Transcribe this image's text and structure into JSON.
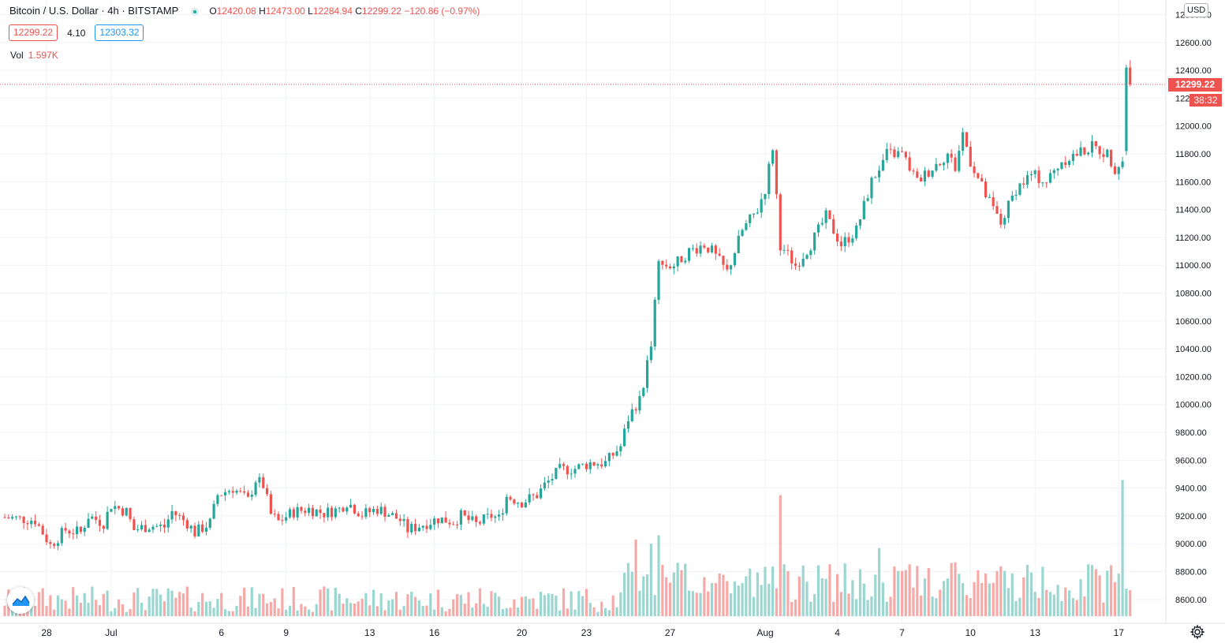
{
  "header": {
    "symbol_title": "Bitcoin / U.S. Dollar · 4h · BITSTAMP",
    "ohlc": {
      "o_key": "O",
      "o_val": "12420.08",
      "h_key": "H",
      "h_val": "12473.00",
      "l_key": "L",
      "l_val": "12284.94",
      "c_key": "C",
      "c_val": "12299.22",
      "change": "−120.86 (−0.97%)"
    },
    "bid": "12299.22",
    "spread": "4.10",
    "ask": "12303.32",
    "volume_label": "Vol",
    "volume_value": "1.597K"
  },
  "price_axis": {
    "currency": "USD",
    "last_price": "12299.22",
    "countdown": "38:32"
  },
  "colors": {
    "up": "#26a69a",
    "down": "#ef5350",
    "up_volume": "#9bd6d0",
    "down_volume": "#f5aaa8",
    "grid": "#f0f3fa",
    "axis_text": "#131722"
  },
  "icons": {
    "logo": "tradingview-cloud-icon",
    "settings": "gear-icon",
    "visibility": "eye-icon"
  },
  "chart_data": {
    "type": "candlestick",
    "timeframe": "4h",
    "ylim": [
      8480,
      12800
    ],
    "y_ticks": [
      8600,
      8800,
      9000,
      9200,
      9400,
      9600,
      9800,
      10000,
      10200,
      10400,
      10600,
      10800,
      11000,
      11200,
      11400,
      11600,
      11800,
      12000,
      12200,
      12400,
      12600,
      12800
    ],
    "x_ticks": [
      "28",
      "Jul",
      "6",
      "9",
      "13",
      "16",
      "20",
      "23",
      "27",
      "Aug",
      "4",
      "7",
      "10",
      "13",
      "17"
    ],
    "last_price": 12299.22,
    "last_candle": {
      "open": 12420.08,
      "high": 12473.0,
      "low": 12284.94,
      "close": 12299.22
    },
    "close_path": [
      [
        0,
        9190
      ],
      [
        8,
        9170
      ],
      [
        12,
        8990
      ],
      [
        16,
        9100
      ],
      [
        20,
        9080
      ],
      [
        22,
        9200
      ],
      [
        26,
        9150
      ],
      [
        28,
        9280
      ],
      [
        32,
        9230
      ],
      [
        34,
        9100
      ],
      [
        38,
        9130
      ],
      [
        42,
        9120
      ],
      [
        44,
        9230
      ],
      [
        48,
        9150
      ],
      [
        50,
        9080
      ],
      [
        54,
        9150
      ],
      [
        56,
        9350
      ],
      [
        60,
        9400
      ],
      [
        64,
        9310
      ],
      [
        66,
        9460
      ],
      [
        68,
        9420
      ],
      [
        70,
        9210
      ],
      [
        72,
        9160
      ],
      [
        76,
        9230
      ],
      [
        80,
        9250
      ],
      [
        84,
        9220
      ],
      [
        88,
        9250
      ],
      [
        90,
        9300
      ],
      [
        94,
        9210
      ],
      [
        98,
        9250
      ],
      [
        100,
        9230
      ],
      [
        104,
        9170
      ],
      [
        106,
        9100
      ],
      [
        110,
        9140
      ],
      [
        114,
        9180
      ],
      [
        118,
        9160
      ],
      [
        120,
        9200
      ],
      [
        124,
        9140
      ],
      [
        128,
        9200
      ],
      [
        130,
        9180
      ],
      [
        132,
        9340
      ],
      [
        136,
        9300
      ],
      [
        140,
        9350
      ],
      [
        142,
        9420
      ],
      [
        146,
        9530
      ],
      [
        150,
        9540
      ],
      [
        154,
        9580
      ],
      [
        158,
        9580
      ],
      [
        162,
        9700
      ],
      [
        164,
        9900
      ],
      [
        166,
        10000
      ],
      [
        168,
        10150
      ],
      [
        170,
        10450
      ],
      [
        172,
        11000
      ],
      [
        176,
        11000
      ],
      [
        180,
        11100
      ],
      [
        184,
        11150
      ],
      [
        186,
        11100
      ],
      [
        190,
        10950
      ],
      [
        194,
        11250
      ],
      [
        198,
        11400
      ],
      [
        200,
        11550
      ],
      [
        202,
        11850
      ],
      [
        204,
        11150
      ],
      [
        208,
        11000
      ],
      [
        212,
        11150
      ],
      [
        216,
        11350
      ],
      [
        220,
        11150
      ],
      [
        224,
        11250
      ],
      [
        228,
        11600
      ],
      [
        232,
        11800
      ],
      [
        236,
        11800
      ],
      [
        240,
        11600
      ],
      [
        244,
        11700
      ],
      [
        248,
        11800
      ],
      [
        250,
        11700
      ],
      [
        252,
        11950
      ],
      [
        254,
        11750
      ],
      [
        258,
        11500
      ],
      [
        262,
        11300
      ],
      [
        266,
        11550
      ],
      [
        270,
        11650
      ],
      [
        274,
        11600
      ],
      [
        278,
        11750
      ],
      [
        282,
        11800
      ],
      [
        286,
        11850
      ],
      [
        290,
        11800
      ],
      [
        292,
        11700
      ],
      [
        294,
        11750
      ],
      [
        296,
        12299.22
      ]
    ],
    "volume": {
      "spikes": [
        [
          166,
          900
        ],
        [
          172,
          950
        ],
        [
          170,
          700
        ],
        [
          204,
          1420
        ],
        [
          230,
          800
        ],
        [
          170,
          850
        ],
        [
          294,
          1597
        ]
      ],
      "base_range": [
        50,
        350
      ]
    }
  }
}
